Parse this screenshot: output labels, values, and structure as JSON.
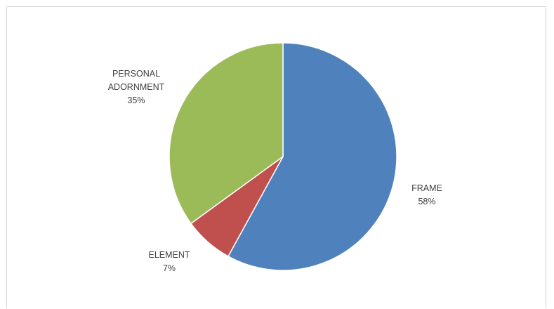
{
  "chart_data": {
    "type": "pie",
    "title": "",
    "slices": [
      {
        "name": "FRAME",
        "value": 58,
        "label": "58%",
        "color": "#4F81BD"
      },
      {
        "name": "ELEMENT",
        "value": 7,
        "label": "7%",
        "color": "#C0504D"
      },
      {
        "name": "PERSONAL ADORNMENT",
        "label_lines": [
          "PERSONAL",
          "ADORNMENT"
        ],
        "value": 35,
        "label": "35%",
        "color": "#9BBB59"
      }
    ],
    "start_angle": "12 o'clock",
    "direction": "clockwise",
    "legend": "none",
    "data_labels": "category name and percentage"
  }
}
